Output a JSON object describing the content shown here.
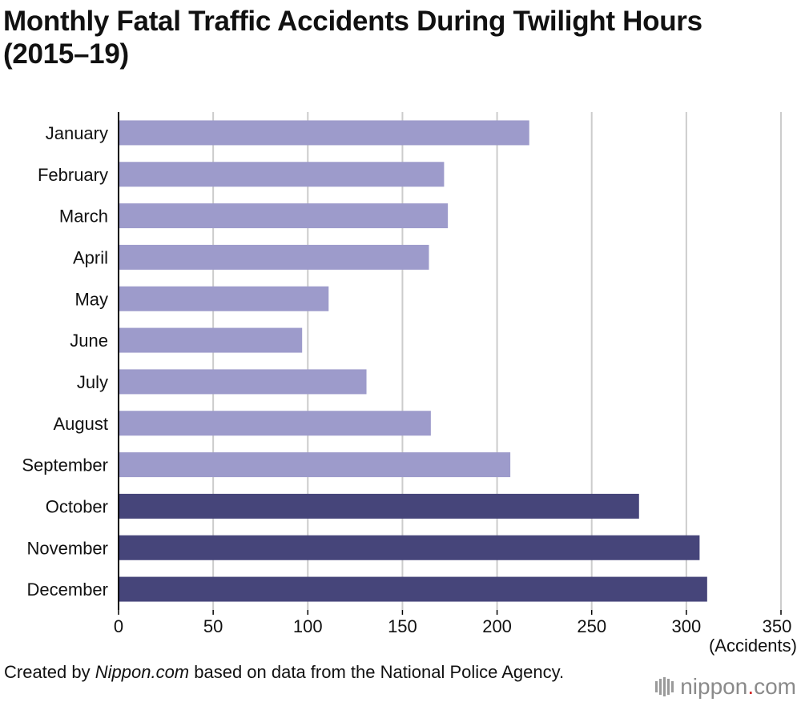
{
  "chart_data": {
    "type": "bar",
    "orientation": "horizontal",
    "title_line1": "Monthly Fatal Traffic Accidents During Twilight Hours",
    "title_line2": "(2015–19)",
    "xlabel": "(Accidents)",
    "ylabel": "",
    "xlim": [
      0,
      350
    ],
    "xticks": [
      0,
      50,
      100,
      150,
      200,
      250,
      300,
      350
    ],
    "grid": true,
    "categories": [
      "January",
      "February",
      "March",
      "April",
      "May",
      "June",
      "July",
      "August",
      "September",
      "October",
      "November",
      "December"
    ],
    "values": [
      217,
      172,
      174,
      164,
      111,
      97,
      131,
      165,
      207,
      275,
      307,
      311
    ],
    "highlight": [
      "October",
      "November",
      "December"
    ],
    "colors": {
      "default": "#9d9bcb",
      "highlight": "#46457a",
      "grid": "#cccccc",
      "axis": "#000000"
    }
  },
  "source": {
    "prefix": "Created by ",
    "site": "Nippon.com",
    "suffix": " based on data from the National Police Agency."
  },
  "logo": {
    "name": "nippon",
    "dot": ".",
    "tld": "com"
  }
}
